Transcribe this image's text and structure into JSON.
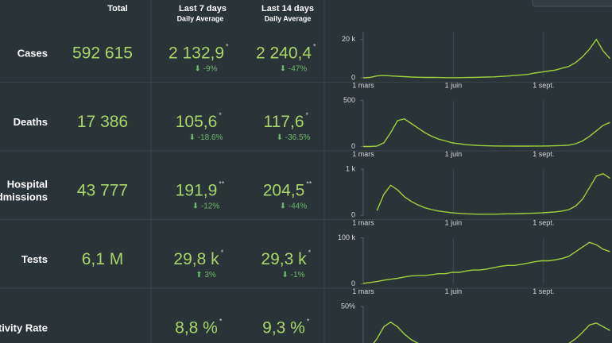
{
  "header": {
    "total": "Total",
    "last7": "Last 7 days",
    "last14": "Last 14 days",
    "daily_average": "Daily Average"
  },
  "rows": [
    {
      "label_lines": [
        "Cases"
      ],
      "total": "592 615",
      "last7": {
        "value": "2 132,9",
        "note": "*",
        "change": "⬇ -9%"
      },
      "last14": {
        "value": "2 240,4",
        "note": "*",
        "change": "⬇ -47%"
      },
      "chart": {
        "type": "line",
        "color": "#9fd03f",
        "ylim": [
          0,
          24000
        ],
        "yticks": [
          0,
          {
            "value": 20000,
            "label": "20 k"
          }
        ],
        "xlim": [
          0,
          254
        ],
        "xticks": [
          {
            "value": 0,
            "label": "1 mars"
          },
          {
            "value": 92,
            "label": "1 juin"
          },
          {
            "value": 184,
            "label": "1 sept."
          }
        ],
        "x": [
          0,
          7,
          14,
          21,
          28,
          35,
          42,
          49,
          56,
          63,
          70,
          77,
          84,
          91,
          98,
          105,
          112,
          119,
          126,
          133,
          140,
          147,
          154,
          161,
          168,
          175,
          182,
          189,
          196,
          203,
          210,
          217,
          224,
          231,
          238,
          245,
          252
        ],
        "values": [
          0,
          200,
          1000,
          1200,
          1000,
          800,
          600,
          400,
          300,
          200,
          200,
          150,
          100,
          100,
          100,
          150,
          200,
          300,
          400,
          500,
          700,
          900,
          1200,
          1500,
          1800,
          2500,
          3000,
          3500,
          4000,
          5000,
          6000,
          8000,
          11000,
          15000,
          20000,
          14000,
          10000
        ]
      }
    },
    {
      "label_lines": [
        "Deaths"
      ],
      "total": "17 386",
      "last7": {
        "value": "105,6",
        "note": "*",
        "change": "⬇ -18.6%"
      },
      "last14": {
        "value": "117,6",
        "note": "*",
        "change": "⬇ -36.5%"
      },
      "chart": {
        "type": "line",
        "color": "#9fd03f",
        "ylim": [
          0,
          500
        ],
        "yticks": [
          0,
          500
        ],
        "xlim": [
          0,
          254
        ],
        "xticks": [
          {
            "value": 0,
            "label": "1 mars"
          },
          {
            "value": 92,
            "label": "1 juin"
          },
          {
            "value": 184,
            "label": "1 sept."
          }
        ],
        "x": [
          0,
          7,
          14,
          21,
          28,
          35,
          42,
          49,
          56,
          63,
          70,
          77,
          84,
          91,
          98,
          105,
          112,
          119,
          126,
          133,
          140,
          147,
          154,
          161,
          168,
          175,
          182,
          189,
          196,
          203,
          210,
          217,
          224,
          231,
          238,
          245,
          252
        ],
        "values": [
          0,
          0,
          5,
          40,
          150,
          280,
          300,
          250,
          200,
          150,
          110,
          80,
          60,
          40,
          30,
          20,
          15,
          10,
          8,
          6,
          5,
          5,
          4,
          4,
          4,
          5,
          5,
          6,
          8,
          10,
          15,
          30,
          60,
          110,
          170,
          230,
          260
        ]
      }
    },
    {
      "label_lines": [
        "Hospital",
        "Admissions"
      ],
      "total": "43 777",
      "last7": {
        "value": "191,9",
        "note": "**",
        "change": "⬇ -12%"
      },
      "last14": {
        "value": "204,5",
        "note": "**",
        "change": "⬇ -44%"
      },
      "chart": {
        "type": "line",
        "color": "#9fd03f",
        "ylim": [
          0,
          1000
        ],
        "yticks": [
          0,
          {
            "value": 1000,
            "label": "1 k"
          }
        ],
        "xlim": [
          0,
          254
        ],
        "xticks": [
          {
            "value": 0,
            "label": "1 mars"
          },
          {
            "value": 92,
            "label": "1 juin"
          },
          {
            "value": 184,
            "label": "1 sept."
          }
        ],
        "x": [
          0,
          7,
          14,
          21,
          28,
          35,
          42,
          49,
          56,
          63,
          70,
          77,
          84,
          91,
          98,
          105,
          112,
          119,
          126,
          133,
          140,
          147,
          154,
          161,
          168,
          175,
          182,
          189,
          196,
          203,
          210,
          217,
          224,
          231,
          238,
          245,
          252
        ],
        "values": [
          null,
          null,
          100,
          450,
          650,
          550,
          400,
          300,
          220,
          160,
          120,
          90,
          70,
          50,
          40,
          30,
          25,
          20,
          20,
          20,
          25,
          30,
          30,
          35,
          40,
          45,
          50,
          60,
          70,
          90,
          120,
          200,
          350,
          600,
          850,
          900,
          800
        ]
      }
    },
    {
      "label_lines": [
        "Tests"
      ],
      "total": "6,1 M",
      "last7": {
        "value": "29,8 k",
        "note": "*",
        "change": "⬆ 3%"
      },
      "last14": {
        "value": "29,3 k",
        "note": "*",
        "change": "⬇ -1%"
      },
      "chart": {
        "type": "line",
        "color": "#9fd03f",
        "ylim": [
          0,
          100000
        ],
        "yticks": [
          0,
          {
            "value": 100000,
            "label": "100 k"
          }
        ],
        "xlim": [
          0,
          254
        ],
        "xticks": [
          {
            "value": 0,
            "label": "1 mars"
          },
          {
            "value": 92,
            "label": "1 juin"
          },
          {
            "value": 184,
            "label": "1 sept."
          }
        ],
        "x": [
          0,
          7,
          14,
          21,
          28,
          35,
          42,
          49,
          56,
          63,
          70,
          77,
          84,
          91,
          98,
          105,
          112,
          119,
          126,
          133,
          140,
          147,
          154,
          161,
          168,
          175,
          182,
          189,
          196,
          203,
          210,
          217,
          224,
          231,
          238,
          245,
          252
        ],
        "values": [
          1000,
          3000,
          5000,
          8000,
          10000,
          12000,
          15000,
          17000,
          18000,
          18000,
          20000,
          22000,
          22000,
          25000,
          25000,
          28000,
          30000,
          30000,
          32000,
          35000,
          38000,
          40000,
          40000,
          42000,
          45000,
          48000,
          50000,
          50000,
          52000,
          55000,
          60000,
          70000,
          80000,
          90000,
          85000,
          75000,
          70000
        ]
      }
    },
    {
      "label_lines": [
        "Positivity Rate"
      ],
      "total": null,
      "last7": {
        "value": "8,8 %",
        "note": "*",
        "change": null
      },
      "last14": {
        "value": "9,3 %",
        "note": "*",
        "change": null
      },
      "chart": {
        "type": "line",
        "color": "#9fd03f",
        "ylim": [
          0,
          50
        ],
        "yticks": [
          {
            "value": 50,
            "label": "50%"
          }
        ],
        "xlim": [
          0,
          254
        ],
        "xticks": [],
        "x": [
          0,
          7,
          14,
          21,
          28,
          35,
          42,
          49,
          56,
          63,
          70,
          77,
          84,
          91,
          98,
          105,
          112,
          119,
          126,
          133,
          140,
          147,
          154,
          161,
          168,
          175,
          182,
          189,
          196,
          203,
          210,
          217,
          224,
          231,
          238,
          245,
          252
        ],
        "values": [
          0,
          5,
          15,
          28,
          33,
          28,
          20,
          14,
          10,
          7,
          5,
          4,
          3,
          2,
          2,
          1,
          1,
          1,
          1,
          1,
          1,
          1,
          1,
          1,
          2,
          2,
          2,
          3,
          4,
          6,
          10,
          15,
          22,
          30,
          32,
          28,
          24
        ]
      }
    }
  ]
}
